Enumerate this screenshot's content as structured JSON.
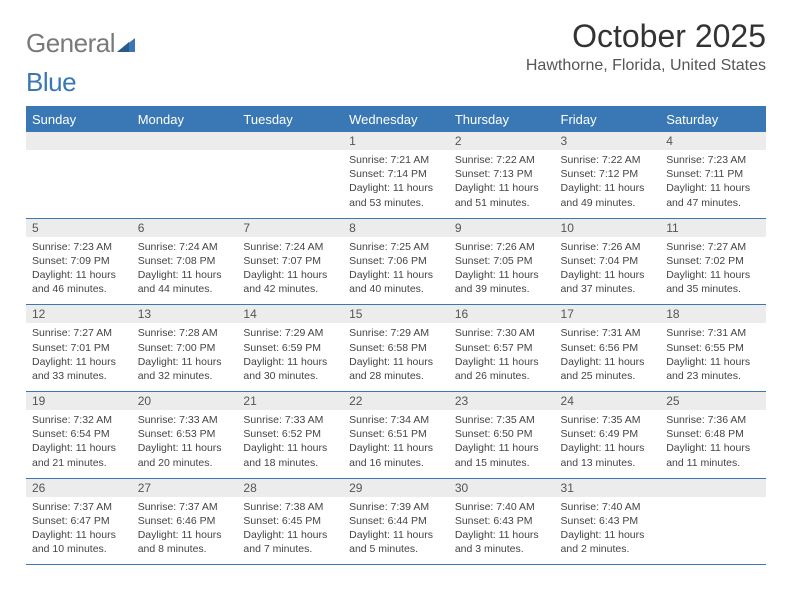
{
  "logo": {
    "gray": "General",
    "blue": "Blue"
  },
  "title": "October 2025",
  "location": "Hawthorne, Florida, United States",
  "colors": {
    "accent": "#3a78b5",
    "header_bg": "#3a78b5",
    "daynum_bg": "#ececec"
  },
  "weekdays": [
    "Sunday",
    "Monday",
    "Tuesday",
    "Wednesday",
    "Thursday",
    "Friday",
    "Saturday"
  ],
  "weeks": [
    [
      {
        "n": "",
        "lines": [
          "",
          "",
          "",
          ""
        ]
      },
      {
        "n": "",
        "lines": [
          "",
          "",
          "",
          ""
        ]
      },
      {
        "n": "",
        "lines": [
          "",
          "",
          "",
          ""
        ]
      },
      {
        "n": "1",
        "lines": [
          "Sunrise: 7:21 AM",
          "Sunset: 7:14 PM",
          "Daylight: 11 hours",
          "and 53 minutes."
        ]
      },
      {
        "n": "2",
        "lines": [
          "Sunrise: 7:22 AM",
          "Sunset: 7:13 PM",
          "Daylight: 11 hours",
          "and 51 minutes."
        ]
      },
      {
        "n": "3",
        "lines": [
          "Sunrise: 7:22 AM",
          "Sunset: 7:12 PM",
          "Daylight: 11 hours",
          "and 49 minutes."
        ]
      },
      {
        "n": "4",
        "lines": [
          "Sunrise: 7:23 AM",
          "Sunset: 7:11 PM",
          "Daylight: 11 hours",
          "and 47 minutes."
        ]
      }
    ],
    [
      {
        "n": "5",
        "lines": [
          "Sunrise: 7:23 AM",
          "Sunset: 7:09 PM",
          "Daylight: 11 hours",
          "and 46 minutes."
        ]
      },
      {
        "n": "6",
        "lines": [
          "Sunrise: 7:24 AM",
          "Sunset: 7:08 PM",
          "Daylight: 11 hours",
          "and 44 minutes."
        ]
      },
      {
        "n": "7",
        "lines": [
          "Sunrise: 7:24 AM",
          "Sunset: 7:07 PM",
          "Daylight: 11 hours",
          "and 42 minutes."
        ]
      },
      {
        "n": "8",
        "lines": [
          "Sunrise: 7:25 AM",
          "Sunset: 7:06 PM",
          "Daylight: 11 hours",
          "and 40 minutes."
        ]
      },
      {
        "n": "9",
        "lines": [
          "Sunrise: 7:26 AM",
          "Sunset: 7:05 PM",
          "Daylight: 11 hours",
          "and 39 minutes."
        ]
      },
      {
        "n": "10",
        "lines": [
          "Sunrise: 7:26 AM",
          "Sunset: 7:04 PM",
          "Daylight: 11 hours",
          "and 37 minutes."
        ]
      },
      {
        "n": "11",
        "lines": [
          "Sunrise: 7:27 AM",
          "Sunset: 7:02 PM",
          "Daylight: 11 hours",
          "and 35 minutes."
        ]
      }
    ],
    [
      {
        "n": "12",
        "lines": [
          "Sunrise: 7:27 AM",
          "Sunset: 7:01 PM",
          "Daylight: 11 hours",
          "and 33 minutes."
        ]
      },
      {
        "n": "13",
        "lines": [
          "Sunrise: 7:28 AM",
          "Sunset: 7:00 PM",
          "Daylight: 11 hours",
          "and 32 minutes."
        ]
      },
      {
        "n": "14",
        "lines": [
          "Sunrise: 7:29 AM",
          "Sunset: 6:59 PM",
          "Daylight: 11 hours",
          "and 30 minutes."
        ]
      },
      {
        "n": "15",
        "lines": [
          "Sunrise: 7:29 AM",
          "Sunset: 6:58 PM",
          "Daylight: 11 hours",
          "and 28 minutes."
        ]
      },
      {
        "n": "16",
        "lines": [
          "Sunrise: 7:30 AM",
          "Sunset: 6:57 PM",
          "Daylight: 11 hours",
          "and 26 minutes."
        ]
      },
      {
        "n": "17",
        "lines": [
          "Sunrise: 7:31 AM",
          "Sunset: 6:56 PM",
          "Daylight: 11 hours",
          "and 25 minutes."
        ]
      },
      {
        "n": "18",
        "lines": [
          "Sunrise: 7:31 AM",
          "Sunset: 6:55 PM",
          "Daylight: 11 hours",
          "and 23 minutes."
        ]
      }
    ],
    [
      {
        "n": "19",
        "lines": [
          "Sunrise: 7:32 AM",
          "Sunset: 6:54 PM",
          "Daylight: 11 hours",
          "and 21 minutes."
        ]
      },
      {
        "n": "20",
        "lines": [
          "Sunrise: 7:33 AM",
          "Sunset: 6:53 PM",
          "Daylight: 11 hours",
          "and 20 minutes."
        ]
      },
      {
        "n": "21",
        "lines": [
          "Sunrise: 7:33 AM",
          "Sunset: 6:52 PM",
          "Daylight: 11 hours",
          "and 18 minutes."
        ]
      },
      {
        "n": "22",
        "lines": [
          "Sunrise: 7:34 AM",
          "Sunset: 6:51 PM",
          "Daylight: 11 hours",
          "and 16 minutes."
        ]
      },
      {
        "n": "23",
        "lines": [
          "Sunrise: 7:35 AM",
          "Sunset: 6:50 PM",
          "Daylight: 11 hours",
          "and 15 minutes."
        ]
      },
      {
        "n": "24",
        "lines": [
          "Sunrise: 7:35 AM",
          "Sunset: 6:49 PM",
          "Daylight: 11 hours",
          "and 13 minutes."
        ]
      },
      {
        "n": "25",
        "lines": [
          "Sunrise: 7:36 AM",
          "Sunset: 6:48 PM",
          "Daylight: 11 hours",
          "and 11 minutes."
        ]
      }
    ],
    [
      {
        "n": "26",
        "lines": [
          "Sunrise: 7:37 AM",
          "Sunset: 6:47 PM",
          "Daylight: 11 hours",
          "and 10 minutes."
        ]
      },
      {
        "n": "27",
        "lines": [
          "Sunrise: 7:37 AM",
          "Sunset: 6:46 PM",
          "Daylight: 11 hours",
          "and 8 minutes."
        ]
      },
      {
        "n": "28",
        "lines": [
          "Sunrise: 7:38 AM",
          "Sunset: 6:45 PM",
          "Daylight: 11 hours",
          "and 7 minutes."
        ]
      },
      {
        "n": "29",
        "lines": [
          "Sunrise: 7:39 AM",
          "Sunset: 6:44 PM",
          "Daylight: 11 hours",
          "and 5 minutes."
        ]
      },
      {
        "n": "30",
        "lines": [
          "Sunrise: 7:40 AM",
          "Sunset: 6:43 PM",
          "Daylight: 11 hours",
          "and 3 minutes."
        ]
      },
      {
        "n": "31",
        "lines": [
          "Sunrise: 7:40 AM",
          "Sunset: 6:43 PM",
          "Daylight: 11 hours",
          "and 2 minutes."
        ]
      },
      {
        "n": "",
        "lines": [
          "",
          "",
          "",
          ""
        ]
      }
    ]
  ]
}
